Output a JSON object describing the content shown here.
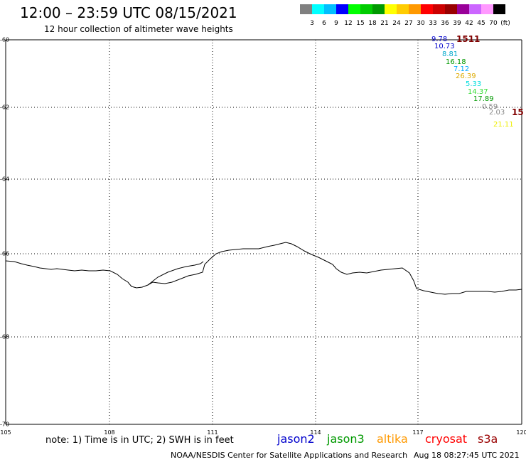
{
  "header": {
    "title": "12:00 – 23:59 UTC 08/15/2021",
    "subtitle": "12 hour collection of altimeter wave heights"
  },
  "colorbar": {
    "colors": [
      "#808080",
      "#00ffff",
      "#00bfff",
      "#0000ff",
      "#00ff00",
      "#00cc00",
      "#009900",
      "#ffff00",
      "#ffcc00",
      "#ff9900",
      "#ff0000",
      "#cc0000",
      "#990000",
      "#990099",
      "#cc66ff",
      "#ff99ff",
      "#000000"
    ],
    "labels": [
      "3",
      "6",
      "9",
      "12",
      "15",
      "18",
      "21",
      "24",
      "27",
      "30",
      "33",
      "36",
      "39",
      "42",
      "45",
      "70",
      "(ft)"
    ]
  },
  "map": {
    "lon_labels": [
      "105",
      "108",
      "111",
      "114",
      "117",
      "120"
    ],
    "lat_labels": [
      "-60",
      "-62",
      "-64",
      "-66",
      "-68",
      "-70"
    ],
    "coastline_color": "#000000",
    "grid_color": "#000000"
  },
  "wave_heights": [
    {
      "value": "9.78",
      "color": "#0000cc"
    },
    {
      "value": "1511",
      "color": "#800000"
    },
    {
      "value": "10.73",
      "color": "#0000cc"
    },
    {
      "value": "8.81",
      "color": "#00aacc"
    },
    {
      "value": "16.18",
      "color": "#009900"
    },
    {
      "value": "7.12",
      "color": "#00aaff"
    },
    {
      "value": "26.39",
      "color": "#ddaa00"
    },
    {
      "value": "5.33",
      "color": "#00dddd"
    },
    {
      "value": "14.37",
      "color": "#33dd33"
    },
    {
      "value": "17.89",
      "color": "#009900"
    },
    {
      "value": "0.59",
      "color": "#888888"
    },
    {
      "value": "2.03",
      "color": "#888888"
    },
    {
      "value": "15",
      "color": "#800000"
    },
    {
      "value": "21.11",
      "color": "#eeee00"
    }
  ],
  "note": "note: 1) Time is in UTC; 2) SWH is in feet",
  "satellites": [
    {
      "name": "jason2",
      "color": "#0000cc"
    },
    {
      "name": "jason3",
      "color": "#009900"
    },
    {
      "name": "altika",
      "color": "#ff9900"
    },
    {
      "name": "cryosat",
      "color": "#ff0000"
    },
    {
      "name": "s3a",
      "color": "#990000"
    }
  ],
  "footer": {
    "credit": "NOAA/NESDIS Center for Satellite Applications and Research",
    "timestamp": "Aug 18 08:27:45 UTC 2021"
  }
}
